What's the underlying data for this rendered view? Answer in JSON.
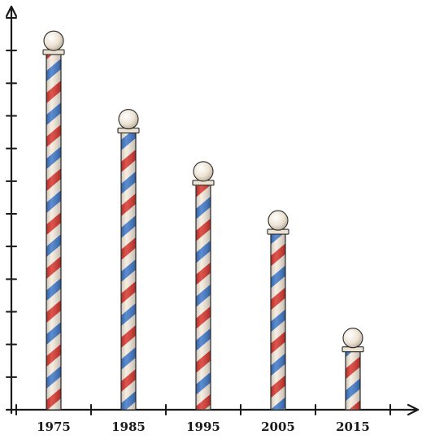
{
  "chart_data": {
    "type": "bar",
    "style": "barber-pole pictogram bars",
    "categories": [
      "1975",
      "1985",
      "1995",
      "2005",
      "2015"
    ],
    "values": [
      10.9,
      8.5,
      6.9,
      5.4,
      1.8
    ],
    "ylim": [
      0,
      12
    ],
    "y_ticks": 12,
    "y_tick_labels": false,
    "title": "",
    "xlabel": "",
    "ylabel": "",
    "grid": false,
    "legend": "none"
  },
  "colors": {
    "stripe_red": "#d7372e",
    "stripe_blue": "#3f78c8",
    "stripe_cream": "#f6ebdd",
    "cap": "#ece2d2",
    "knob": "#ece2d2",
    "axis": "#1a1a1a",
    "outline": "#2b2b2b"
  }
}
